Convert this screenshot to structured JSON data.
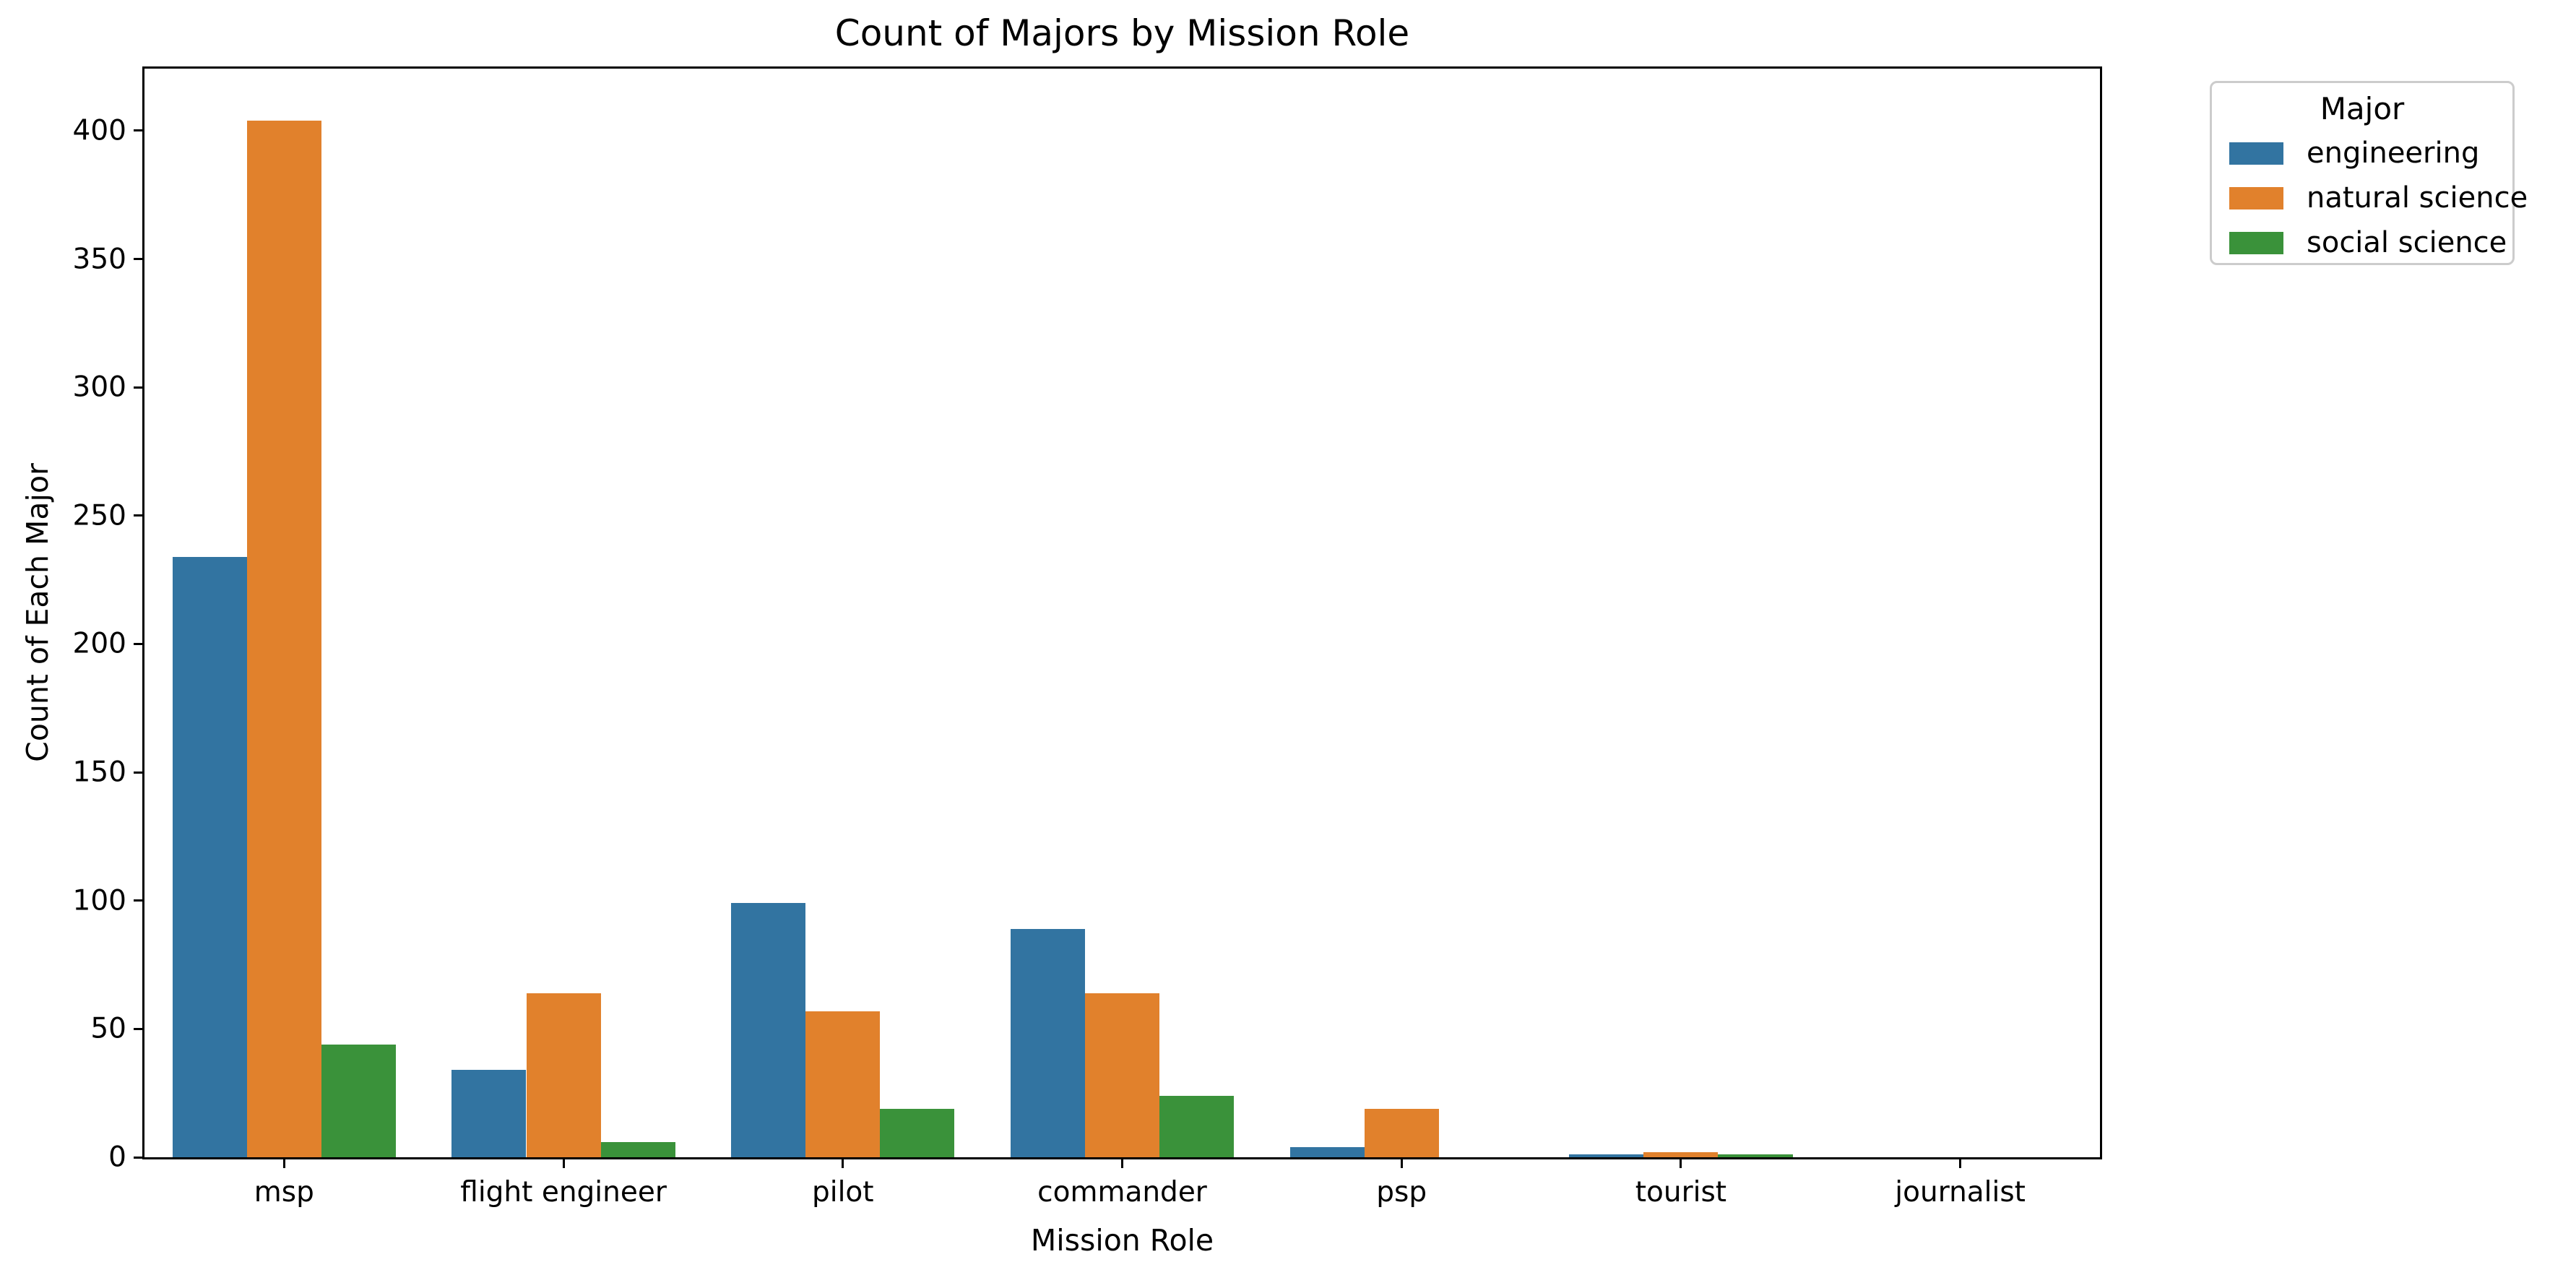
{
  "figure": {
    "title": "Count of Majors by Mission Role",
    "xlabel": "Mission Role",
    "ylabel": "Count of Each Major"
  },
  "legend": {
    "title": "Major",
    "items": [
      {
        "label": "engineering",
        "color": "#3274a1"
      },
      {
        "label": "natural science",
        "color": "#e1812c"
      },
      {
        "label": "social science",
        "color": "#3a923a"
      }
    ]
  },
  "chart_data": {
    "type": "bar",
    "title": "Count of Majors by Mission Role",
    "xlabel": "Mission Role",
    "ylabel": "Count of Each Major",
    "categories": [
      "msp",
      "flight engineer",
      "pilot",
      "commander",
      "psp",
      "tourist",
      "journalist"
    ],
    "series": [
      {
        "name": "engineering",
        "color": "#3274a1",
        "values": [
          234,
          34,
          99,
          89,
          4,
          1,
          0
        ]
      },
      {
        "name": "natural science",
        "color": "#e1812c",
        "values": [
          404,
          64,
          57,
          64,
          19,
          2,
          0
        ]
      },
      {
        "name": "social science",
        "color": "#3a923a",
        "values": [
          44,
          6,
          19,
          24,
          0,
          1,
          0
        ]
      }
    ],
    "ylim": [
      0,
      424.2
    ],
    "yticks": [
      0,
      50,
      100,
      150,
      200,
      250,
      300,
      350,
      400
    ],
    "grid": false,
    "legend_title": "Major",
    "legend_position": "upper-right-outside-axes",
    "bar_group_width_fraction": 0.8
  }
}
